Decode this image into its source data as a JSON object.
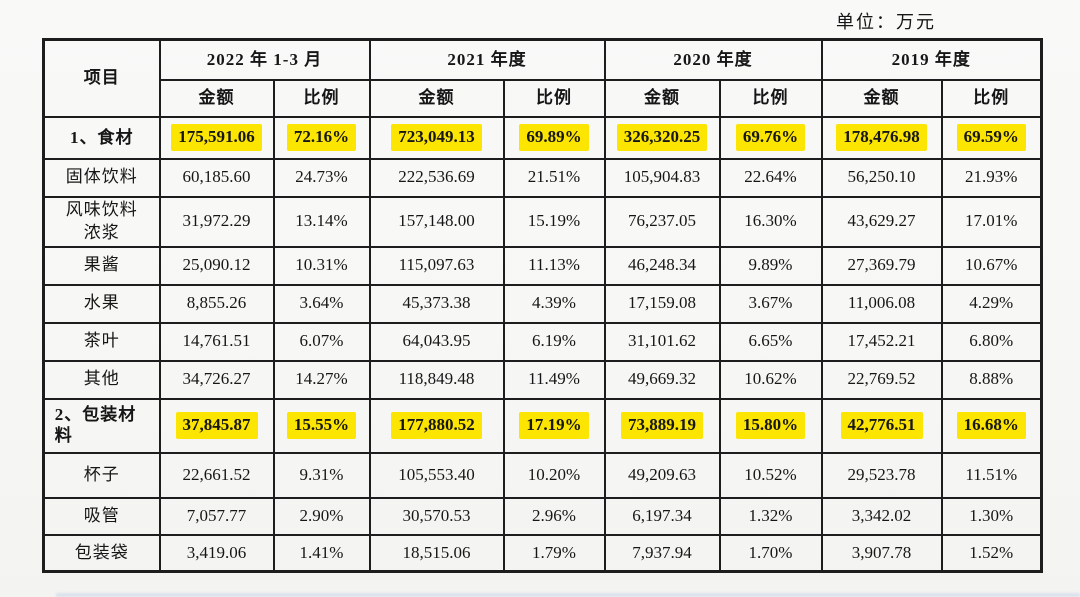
{
  "unit_label": "单位：万元",
  "colors": {
    "page_bg": "#f7f7f5",
    "text": "#161616",
    "border": "#1d1d1d",
    "highlight": "#fce500",
    "bottom_edge": "#c7d3e8"
  },
  "table": {
    "item_header": "项目",
    "amount_header": "金额",
    "ratio_header": "比例",
    "periods": [
      {
        "label": "2022 年 1-3 月"
      },
      {
        "label": "2021 年度"
      },
      {
        "label": "2020 年度"
      },
      {
        "label": "2019 年度"
      }
    ],
    "rows": [
      {
        "label": "1、食材",
        "section": true,
        "values": [
          "175,591.06",
          "72.16%",
          "723,049.13",
          "69.89%",
          "326,320.25",
          "69.76%",
          "178,476.98",
          "69.59%"
        ]
      },
      {
        "label": "固体饮料",
        "section": false,
        "values": [
          "60,185.60",
          "24.73%",
          "222,536.69",
          "21.51%",
          "105,904.83",
          "22.64%",
          "56,250.10",
          "21.93%"
        ]
      },
      {
        "label": "风味饮料浓浆",
        "section": false,
        "values": [
          "31,972.29",
          "13.14%",
          "157,148.00",
          "15.19%",
          "76,237.05",
          "16.30%",
          "43,629.27",
          "17.01%"
        ]
      },
      {
        "label": "果酱",
        "section": false,
        "values": [
          "25,090.12",
          "10.31%",
          "115,097.63",
          "11.13%",
          "46,248.34",
          "9.89%",
          "27,369.79",
          "10.67%"
        ]
      },
      {
        "label": "水果",
        "section": false,
        "values": [
          "8,855.26",
          "3.64%",
          "45,373.38",
          "4.39%",
          "17,159.08",
          "3.67%",
          "11,006.08",
          "4.29%"
        ]
      },
      {
        "label": "茶叶",
        "section": false,
        "values": [
          "14,761.51",
          "6.07%",
          "64,043.95",
          "6.19%",
          "31,101.62",
          "6.65%",
          "17,452.21",
          "6.80%"
        ]
      },
      {
        "label": "其他",
        "section": false,
        "values": [
          "34,726.27",
          "14.27%",
          "118,849.48",
          "11.49%",
          "49,669.32",
          "10.62%",
          "22,769.52",
          "8.88%"
        ]
      },
      {
        "label": "2、包装材料",
        "section": true,
        "values": [
          "37,845.87",
          "15.55%",
          "177,880.52",
          "17.19%",
          "73,889.19",
          "15.80%",
          "42,776.51",
          "16.68%"
        ]
      },
      {
        "label": "杯子",
        "section": false,
        "values": [
          "22,661.52",
          "9.31%",
          "105,553.40",
          "10.20%",
          "49,209.63",
          "10.52%",
          "29,523.78",
          "11.51%"
        ]
      },
      {
        "label": "吸管",
        "section": false,
        "values": [
          "7,057.77",
          "2.90%",
          "30,570.53",
          "2.96%",
          "6,197.34",
          "1.32%",
          "3,342.02",
          "1.30%"
        ]
      },
      {
        "label": "包装袋",
        "section": false,
        "values": [
          "3,419.06",
          "1.41%",
          "18,515.06",
          "1.79%",
          "7,937.94",
          "1.70%",
          "3,907.78",
          "1.52%"
        ]
      }
    ]
  }
}
